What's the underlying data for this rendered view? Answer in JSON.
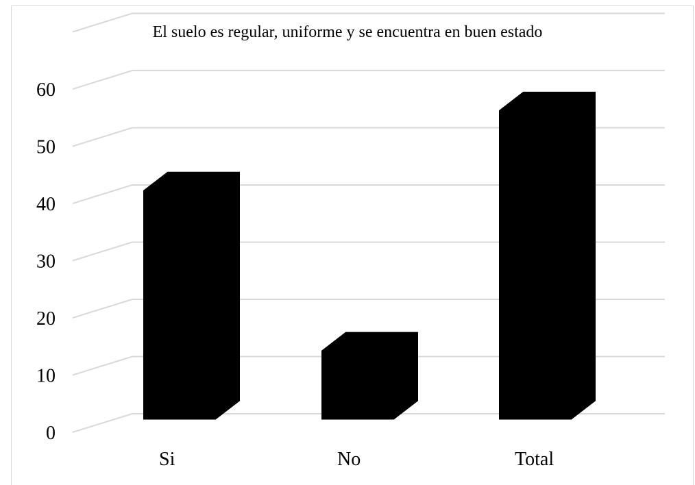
{
  "chart_data": {
    "type": "bar",
    "title": "El suelo es regular, uniforme y se encuentra en buen estado",
    "categories": [
      "Si",
      "No",
      "Total"
    ],
    "values": [
      42,
      14,
      56
    ],
    "ylim": [
      0,
      60
    ],
    "yticks": [
      0,
      10,
      20,
      30,
      40,
      50,
      60
    ],
    "grid": true,
    "style": "3d-column",
    "bar_color": "#000000",
    "grid_color": "#d9d9d9"
  }
}
